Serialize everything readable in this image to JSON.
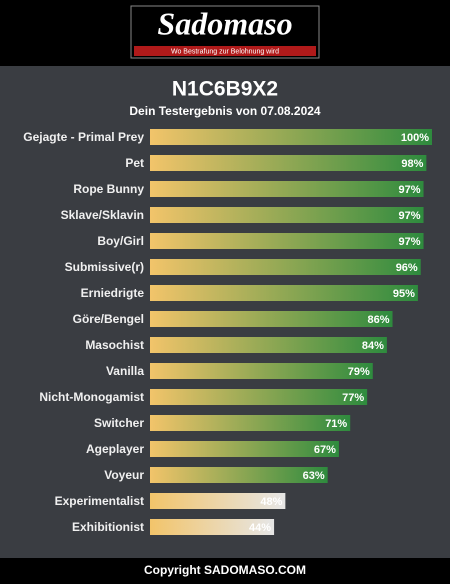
{
  "header": {
    "logo": "Sadomaso",
    "tagline": "Wo Bestrafung zur Belohnung wird"
  },
  "footer": {
    "copyright": "Copyright SADOMASO.COM"
  },
  "chart_data": {
    "type": "bar",
    "orientation": "horizontal",
    "title": "N1C6B9X2",
    "subtitle": "Dein Testergebnis von 07.08.2024",
    "categories": [
      "Gejagte - Primal Prey",
      "Pet",
      "Rope Bunny",
      "Sklave/Sklavin",
      "Boy/Girl",
      "Submissive(r)",
      "Erniedrigte",
      "Göre/Bengel",
      "Masochist",
      "Vanilla",
      "Nicht-Monogamist",
      "Switcher",
      "Ageplayer",
      "Voyeur",
      "Experimentalist",
      "Exhibitionist"
    ],
    "values": [
      100,
      98,
      97,
      97,
      97,
      96,
      95,
      86,
      84,
      79,
      77,
      71,
      67,
      63,
      48,
      44
    ],
    "value_labels": [
      "100%",
      "98%",
      "97%",
      "97%",
      "97%",
      "96%",
      "95%",
      "86%",
      "84%",
      "79%",
      "77%",
      "71%",
      "67%",
      "63%",
      "48%",
      "44%"
    ],
    "gradient_start": "#f2c46a",
    "colors": [
      "#2e8b3e",
      "#2e8b3e",
      "#2e8b3e",
      "#2e8b3e",
      "#2e8b3e",
      "#2e8b3e",
      "#2e8b3e",
      "#2e8b3e",
      "#2e8b3e",
      "#2e8b3e",
      "#2e8b3e",
      "#2e8b3e",
      "#2e8b3e",
      "#2e8b3e",
      "#e6e6e6",
      "#e6e6e6"
    ],
    "xlim": [
      0,
      100
    ]
  }
}
